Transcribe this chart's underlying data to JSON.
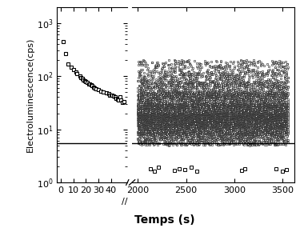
{
  "ylabel": "Electroluminescence(cps)",
  "xlabel": "Temps (s)",
  "ylim": [
    1,
    2000
  ],
  "hline_y": 5.5,
  "background_color": "#ffffff",
  "marker": "s",
  "markersize": 3.5,
  "left_xlim": [
    -3,
    53
  ],
  "right_xlim": [
    1940,
    3620
  ],
  "left_xticks": [
    0,
    10,
    20,
    30,
    40
  ],
  "right_xticks": [
    2000,
    2500,
    3000,
    3500
  ],
  "left_t": [
    2,
    4,
    6,
    8,
    10,
    12,
    13,
    15,
    16,
    17,
    18,
    19,
    20,
    21,
    22,
    23,
    24,
    25,
    26,
    27,
    28,
    30,
    32,
    34,
    36,
    38,
    39,
    40,
    41,
    42,
    43,
    44,
    45,
    46,
    47,
    48,
    49,
    50
  ],
  "left_v": [
    450,
    260,
    170,
    145,
    130,
    120,
    110,
    100,
    95,
    90,
    85,
    80,
    78,
    75,
    72,
    70,
    68,
    65,
    62,
    60,
    58,
    55,
    52,
    50,
    48,
    46,
    44,
    44,
    43,
    42,
    40,
    38,
    37,
    36,
    40,
    35,
    32,
    33
  ]
}
